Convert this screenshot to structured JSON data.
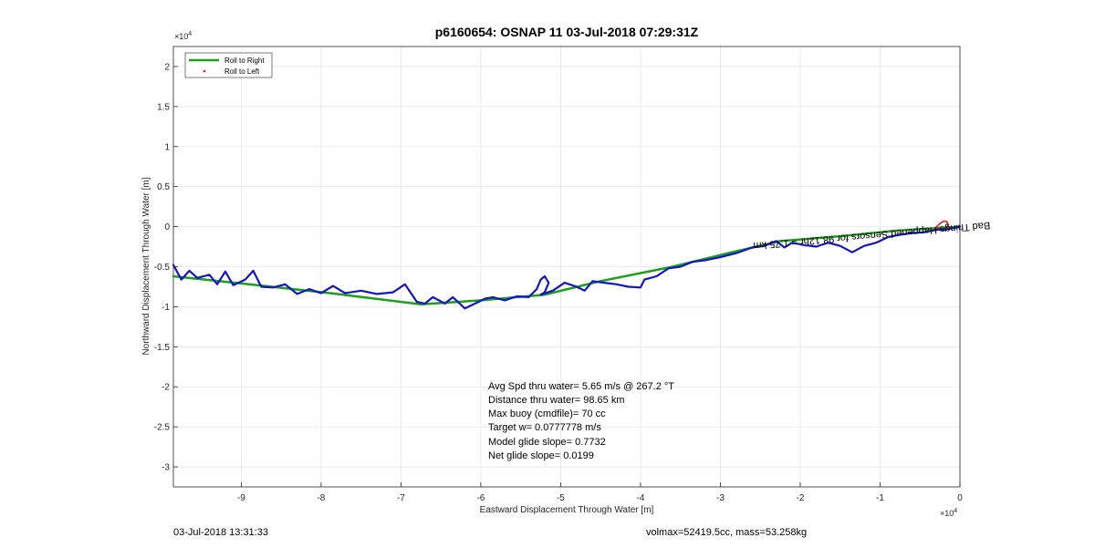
{
  "chart_data": {
    "type": "line",
    "title": "p6160654: OSNAP 11 03-Jul-2018 07:29:31Z",
    "xlabel": "Eastward Displacement Through Water [m]",
    "ylabel": "Northward Displacement Through Water [m]",
    "x_exponent_label": "×10",
    "x_exponent_power": "4",
    "y_exponent_label": "×10",
    "y_exponent_power": "4",
    "xlim": [
      -9.85,
      0
    ],
    "ylim": [
      -3.25,
      2.25
    ],
    "x_ticks": [
      -9,
      -8,
      -7,
      -6,
      -5,
      -4,
      -3,
      -2,
      -1,
      0
    ],
    "x_tick_labels": [
      "-9",
      "-8",
      "-7",
      "-6",
      "-5",
      "-4",
      "-3",
      "-2",
      "-1",
      "0"
    ],
    "y_ticks": [
      2,
      1.5,
      1,
      0.5,
      0,
      -0.5,
      -1,
      -1.5,
      -2,
      -2.5,
      -3
    ],
    "y_tick_labels": [
      "2",
      "1.5",
      "1",
      "0.5",
      "0",
      "-0.5",
      "-1",
      "-1.5",
      "-2",
      "-2.5",
      "-3"
    ],
    "grid": true,
    "legend_placement": "top-left",
    "legend": [
      {
        "name": "Roll to Right",
        "color": "#1aa01a",
        "style": "line"
      },
      {
        "name": "Roll to Left",
        "color": "#e02020",
        "style": "dot"
      }
    ],
    "series": [
      {
        "name": "Roll to Right",
        "color": "#1aa01a",
        "x": [
          -9.85,
          -8.8,
          -7.8,
          -6.75,
          -6.0,
          -5.2,
          -4.5,
          -3.6,
          -2.9,
          -2.25,
          -1.5,
          -0.8,
          0
        ],
        "y": [
          -0.62,
          -0.73,
          -0.84,
          -0.97,
          -0.92,
          -0.85,
          -0.68,
          -0.5,
          -0.33,
          -0.18,
          -0.12,
          -0.05,
          0
        ]
      },
      {
        "name": "Roll to Left",
        "color": "#e02020",
        "x": [
          -0.3,
          -0.25,
          -0.2,
          -0.16,
          -0.15,
          -0.18,
          -0.24,
          -0.3
        ],
        "y": [
          -0.01,
          0.04,
          0.07,
          0.06,
          0.01,
          -0.05,
          -0.04,
          -0.01
        ]
      },
      {
        "color": "#1414c8",
        "x": [
          -9.85,
          -9.75,
          -9.65,
          -9.55,
          -9.4,
          -9.3,
          -9.2,
          -9.1,
          -8.95,
          -8.85,
          -8.75,
          -8.6,
          -8.45,
          -8.3,
          -8.15,
          -8.0,
          -7.85,
          -7.7,
          -7.5,
          -7.3,
          -7.1,
          -6.95,
          -6.8,
          -6.7,
          -6.6,
          -6.45,
          -6.35,
          -6.2,
          -6.05,
          -5.95,
          -5.85,
          -5.7,
          -5.55,
          -5.4,
          -5.3,
          -5.25,
          -5.2,
          -5.15,
          -5.2,
          -5.25,
          -5.1,
          -4.95,
          -4.8,
          -4.7,
          -4.6,
          -4.45,
          -4.3,
          -4.15,
          -4.0,
          -3.95,
          -3.8,
          -3.65,
          -3.5,
          -3.35,
          -3.2,
          -3.0,
          -2.8,
          -2.6,
          -2.45,
          -2.3,
          -2.2,
          -2.1,
          -1.95,
          -1.8,
          -1.65,
          -1.5,
          -1.35,
          -1.2,
          -1.05,
          -0.9,
          -0.75,
          -0.6,
          -0.45,
          -0.3,
          -0.15,
          0
        ],
        "y": [
          -0.48,
          -0.66,
          -0.55,
          -0.64,
          -0.6,
          -0.72,
          -0.56,
          -0.73,
          -0.66,
          -0.55,
          -0.75,
          -0.76,
          -0.72,
          -0.84,
          -0.78,
          -0.83,
          -0.74,
          -0.83,
          -0.8,
          -0.84,
          -0.82,
          -0.72,
          -0.94,
          -0.96,
          -0.88,
          -0.96,
          -0.88,
          -1.02,
          -0.95,
          -0.9,
          -0.88,
          -0.92,
          -0.87,
          -0.88,
          -0.78,
          -0.66,
          -0.62,
          -0.7,
          -0.82,
          -0.85,
          -0.8,
          -0.7,
          -0.75,
          -0.8,
          -0.68,
          -0.7,
          -0.72,
          -0.75,
          -0.76,
          -0.66,
          -0.62,
          -0.52,
          -0.5,
          -0.44,
          -0.42,
          -0.38,
          -0.33,
          -0.26,
          -0.24,
          -0.18,
          -0.26,
          -0.2,
          -0.23,
          -0.25,
          -0.2,
          -0.24,
          -0.32,
          -0.24,
          -0.2,
          -0.13,
          -0.1,
          -0.08,
          -0.07,
          -0.04,
          -0.03,
          0
        ]
      }
    ],
    "rotated_annotation": "Bad Things Happened Sensors for 98.12hr = 1.75 km",
    "annotations": [
      "Avg Spd thru water=  5.65 m/s @ 267.2 °T",
      "Distance thru water= 98.65 km",
      "Max buoy (cmdfile)= 70 cc",
      "Target w= 0.0777778 m/s",
      "Model glide slope= 0.7732",
      "Net glide slope= 0.0199"
    ]
  },
  "footer": {
    "timestamp": "03-Jul-2018 13:31:33",
    "info": "volmax=52419.5cc, mass=53.258kg"
  }
}
